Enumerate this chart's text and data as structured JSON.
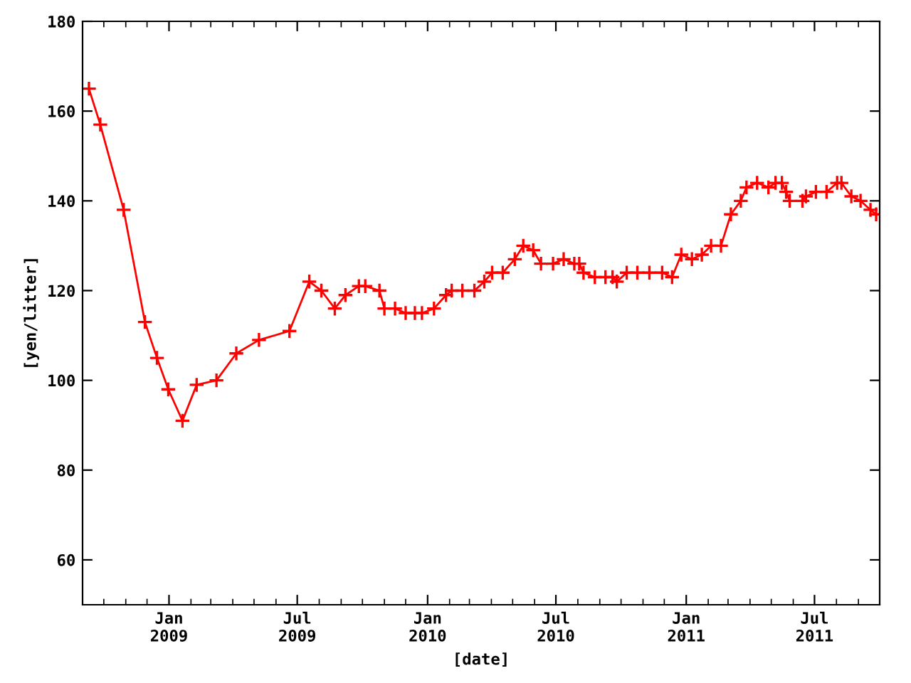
{
  "chart_data": {
    "type": "line",
    "xlabel": "[date]",
    "ylabel": "[yen/litter]",
    "x": [
      "2008-09-10",
      "2008-09-26",
      "2008-10-29",
      "2008-11-28",
      "2008-12-15",
      "2008-12-31",
      "2009-01-20",
      "2009-02-09",
      "2009-03-09",
      "2009-04-06",
      "2009-05-08",
      "2009-06-20",
      "2009-07-18",
      "2009-08-04",
      "2009-08-23",
      "2009-09-07",
      "2009-09-26",
      "2009-10-05",
      "2009-10-25",
      "2009-11-01",
      "2009-11-16",
      "2009-12-01",
      "2009-12-14",
      "2009-12-24",
      "2010-01-10",
      "2010-01-27",
      "2010-02-04",
      "2010-02-19",
      "2010-03-08",
      "2010-03-22",
      "2010-04-02",
      "2010-04-17",
      "2010-05-04",
      "2010-05-16",
      "2010-05-30",
      "2010-06-10",
      "2010-06-27",
      "2010-07-12",
      "2010-07-27",
      "2010-08-03",
      "2010-08-09",
      "2010-08-25",
      "2010-09-09",
      "2010-09-19",
      "2010-09-25",
      "2010-10-09",
      "2010-10-24",
      "2010-11-10",
      "2010-11-28",
      "2010-12-12",
      "2010-12-25",
      "2011-01-09",
      "2011-01-23",
      "2011-02-05",
      "2011-02-19",
      "2011-03-05",
      "2011-03-19",
      "2011-03-27",
      "2011-04-11",
      "2011-04-27",
      "2011-05-07",
      "2011-05-16",
      "2011-05-22",
      "2011-05-27",
      "2011-06-14",
      "2011-06-19",
      "2011-07-03",
      "2011-07-18",
      "2011-08-02",
      "2011-08-08",
      "2011-08-22",
      "2011-09-04",
      "2011-09-18",
      "2011-09-26"
    ],
    "series": [
      {
        "color": "#ff0000",
        "values": [
          165,
          157,
          138,
          113,
          105,
          98,
          91,
          99,
          100,
          106,
          109,
          111,
          122,
          120,
          116,
          119,
          121,
          121,
          120,
          116,
          116,
          115,
          115,
          115,
          116,
          119,
          120,
          120,
          120,
          122,
          124,
          124,
          127,
          130,
          129,
          126,
          126,
          127,
          126,
          126,
          124,
          123,
          123,
          123,
          122,
          124,
          124,
          124,
          124,
          123,
          128,
          127,
          128,
          130,
          130,
          137,
          140,
          143,
          144,
          143,
          144,
          144,
          142,
          140,
          140,
          141,
          142,
          142,
          144,
          144,
          141,
          140,
          138,
          137
        ]
      }
    ],
    "xlim": [
      "2008-09-01",
      "2011-10-01"
    ],
    "xticks": [
      {
        "value": "2009-01-01",
        "label": "Jan\n2009"
      },
      {
        "value": "2009-07-01",
        "label": "Jul\n2009"
      },
      {
        "value": "2010-01-01",
        "label": "Jan\n2010"
      },
      {
        "value": "2010-07-01",
        "label": "Jul\n2010"
      },
      {
        "value": "2011-01-01",
        "label": "Jan\n2011"
      },
      {
        "value": "2011-07-01",
        "label": "Jul\n2011"
      }
    ],
    "ylim": [
      50,
      180
    ],
    "yticks": [
      60,
      80,
      100,
      120,
      140,
      160,
      180
    ],
    "marker": "cross",
    "line_style": "solid"
  }
}
